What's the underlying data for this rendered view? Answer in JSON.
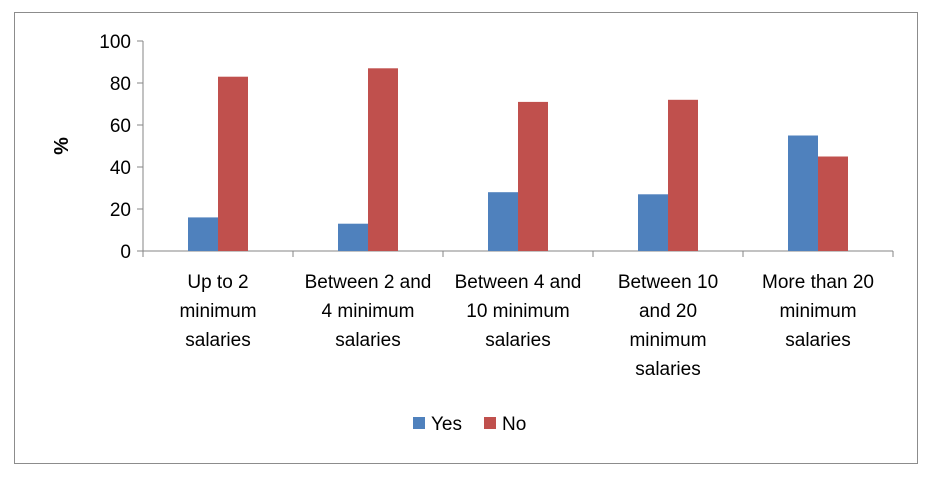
{
  "chart_data": {
    "type": "bar",
    "ylabel": "%",
    "ylim": [
      0,
      100
    ],
    "yticks": [
      0,
      20,
      40,
      60,
      80,
      100
    ],
    "categories": [
      [
        "Up to 2",
        "minimum",
        "salaries"
      ],
      [
        "Between 2 and",
        "4 minimum",
        "salaries"
      ],
      [
        "Between 4 and",
        "10 minimum",
        "salaries"
      ],
      [
        "Between 10",
        "and 20",
        "minimum",
        "salaries"
      ],
      [
        "More than 20",
        "minimum",
        "salaries"
      ]
    ],
    "series": [
      {
        "name": "Yes",
        "color": "#4f81bd",
        "values": [
          16,
          13,
          28,
          27,
          55
        ]
      },
      {
        "name": "No",
        "color": "#c0504d",
        "values": [
          83,
          87,
          71,
          72,
          45
        ]
      }
    ],
    "legend_position": "bottom",
    "grid": false
  }
}
